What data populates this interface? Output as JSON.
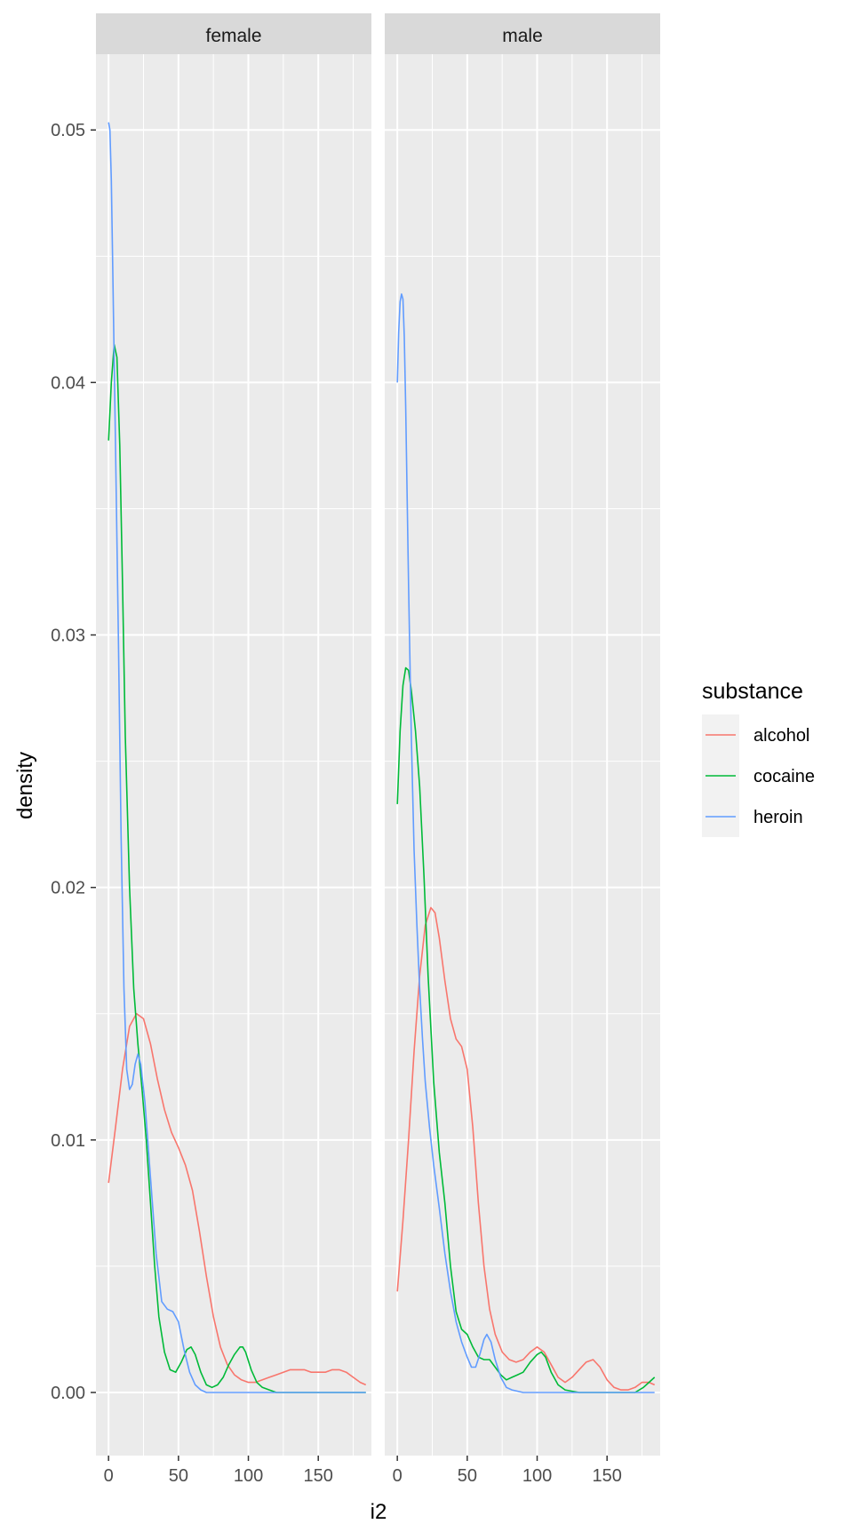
{
  "chart_data": {
    "type": "line",
    "title": "",
    "xlabel": "i2",
    "ylabel": "density",
    "xlim": [
      -9,
      188
    ],
    "ylim": [
      -0.0025,
      0.053
    ],
    "x_ticks": [
      0,
      50,
      100,
      150
    ],
    "x_tick_labels": [
      "0",
      "50",
      "100",
      "150"
    ],
    "y_ticks": [
      0,
      0.01,
      0.02,
      0.03,
      0.04,
      0.05
    ],
    "y_tick_labels": [
      "0.00",
      "0.01",
      "0.02",
      "0.03",
      "0.04",
      "0.05"
    ],
    "grid": true,
    "legend": {
      "title": "substance",
      "position": "right",
      "entries": [
        "alcohol",
        "cocaine",
        "heroin"
      ]
    },
    "colors": {
      "alcohol": "#F8766D",
      "cocaine": "#00BA38",
      "heroin": "#619CFF",
      "panel_bg": "#EBEBEB",
      "strip_bg": "#D9D9D9",
      "grid": "#FFFFFF"
    },
    "panels": [
      {
        "label": "female",
        "series": [
          {
            "name": "alcohol",
            "x": [
              0,
              5,
              10,
              15,
              20,
              25,
              30,
              35,
              40,
              45,
              50,
              55,
              60,
              65,
              70,
              75,
              80,
              85,
              90,
              95,
              100,
              105,
              110,
              115,
              120,
              125,
              130,
              135,
              140,
              145,
              150,
              155,
              160,
              165,
              170,
              175,
              180,
              184
            ],
            "y": [
              0.0083,
              0.0105,
              0.0128,
              0.0145,
              0.015,
              0.0148,
              0.0138,
              0.0124,
              0.0112,
              0.0103,
              0.0097,
              0.009,
              0.008,
              0.0064,
              0.0046,
              0.003,
              0.0018,
              0.0011,
              0.0007,
              0.0005,
              0.0004,
              0.0004,
              0.0005,
              0.0006,
              0.0007,
              0.0008,
              0.0009,
              0.0009,
              0.0009,
              0.0008,
              0.0008,
              0.0008,
              0.0009,
              0.0009,
              0.0008,
              0.0006,
              0.0004,
              0.0003
            ]
          },
          {
            "name": "cocaine",
            "x": [
              0,
              2,
              4,
              6,
              8,
              10,
              12,
              15,
              18,
              21,
              24,
              27,
              30,
              33,
              36,
              40,
              44,
              48,
              52,
              56,
              59,
              62,
              66,
              70,
              74,
              78,
              82,
              86,
              90,
              94,
              96,
              98,
              102,
              106,
              110,
              115,
              120,
              130,
              150,
              170,
              184
            ],
            "y": [
              0.0377,
              0.04,
              0.0415,
              0.041,
              0.0375,
              0.032,
              0.026,
              0.02,
              0.016,
              0.0138,
              0.012,
              0.01,
              0.0075,
              0.005,
              0.003,
              0.0016,
              0.0009,
              0.0008,
              0.0012,
              0.0017,
              0.0018,
              0.0015,
              0.0008,
              0.0003,
              0.0002,
              0.0003,
              0.0006,
              0.0011,
              0.0015,
              0.0018,
              0.0018,
              0.0016,
              0.0009,
              0.0004,
              0.0002,
              0.0001,
              0.0,
              0.0,
              0.0,
              0.0,
              0.0
            ]
          },
          {
            "name": "heroin",
            "x": [
              0,
              1,
              2,
              3,
              5,
              7,
              9,
              11,
              13,
              15,
              17,
              19,
              21,
              23,
              26,
              30,
              34,
              38,
              42,
              46,
              50,
              54,
              58,
              62,
              66,
              70,
              75,
              80,
              90,
              110,
              130,
              150,
              170,
              184
            ],
            "y": [
              0.0503,
              0.05,
              0.048,
              0.0445,
              0.0375,
              0.03,
              0.022,
              0.016,
              0.0128,
              0.012,
              0.0122,
              0.013,
              0.0134,
              0.013,
              0.0115,
              0.0085,
              0.0055,
              0.0036,
              0.0033,
              0.0032,
              0.0028,
              0.0017,
              0.0008,
              0.0003,
              0.0001,
              0.0,
              0.0,
              0.0,
              0.0,
              0.0,
              0.0,
              0.0,
              0.0,
              0.0
            ]
          }
        ]
      },
      {
        "label": "male",
        "series": [
          {
            "name": "alcohol",
            "x": [
              0,
              4,
              8,
              12,
              16,
              20,
              24,
              27,
              30,
              34,
              38,
              42,
              46,
              50,
              54,
              58,
              62,
              66,
              70,
              75,
              80,
              85,
              90,
              95,
              100,
              105,
              110,
              115,
              120,
              125,
              130,
              135,
              140,
              145,
              150,
              155,
              160,
              165,
              170,
              175,
              180,
              184
            ],
            "y": [
              0.004,
              0.0068,
              0.01,
              0.0135,
              0.0165,
              0.0185,
              0.0192,
              0.019,
              0.018,
              0.0163,
              0.0148,
              0.014,
              0.0137,
              0.0128,
              0.0105,
              0.0075,
              0.005,
              0.0033,
              0.0023,
              0.0016,
              0.0013,
              0.0012,
              0.0013,
              0.0016,
              0.0018,
              0.0016,
              0.0011,
              0.0006,
              0.0004,
              0.0006,
              0.0009,
              0.0012,
              0.0013,
              0.001,
              0.0005,
              0.0002,
              0.0001,
              0.0001,
              0.0002,
              0.0004,
              0.0004,
              0.0003
            ]
          },
          {
            "name": "cocaine",
            "x": [
              0,
              2,
              4,
              6,
              8,
              10,
              13,
              16,
              19,
              22,
              26,
              30,
              34,
              38,
              42,
              46,
              50,
              54,
              58,
              62,
              66,
              70,
              74,
              78,
              82,
              86,
              90,
              95,
              100,
              103,
              106,
              110,
              115,
              120,
              130,
              140,
              150,
              160,
              170,
              176,
              180,
              184
            ],
            "y": [
              0.0233,
              0.0262,
              0.028,
              0.0287,
              0.0286,
              0.0278,
              0.0262,
              0.024,
              0.0205,
              0.0165,
              0.0123,
              0.0095,
              0.0075,
              0.005,
              0.0032,
              0.0025,
              0.0023,
              0.0018,
              0.0014,
              0.0013,
              0.0013,
              0.001,
              0.0007,
              0.0005,
              0.0006,
              0.0007,
              0.0008,
              0.0012,
              0.0015,
              0.0016,
              0.0014,
              0.0008,
              0.0003,
              0.0001,
              0.0,
              0.0,
              0.0,
              0.0,
              0.0,
              0.0002,
              0.0004,
              0.0006
            ]
          },
          {
            "name": "heroin",
            "x": [
              0,
              1,
              2,
              3,
              4,
              5,
              6,
              8,
              10,
              12,
              14,
              16,
              18,
              20,
              23,
              26,
              30,
              34,
              38,
              42,
              46,
              50,
              53,
              56,
              59,
              62,
              64,
              67,
              70,
              74,
              78,
              82,
              90,
              110,
              130,
              150,
              170,
              184
            ],
            "y": [
              0.04,
              0.042,
              0.0432,
              0.0435,
              0.0433,
              0.0418,
              0.039,
              0.032,
              0.026,
              0.0215,
              0.0185,
              0.016,
              0.014,
              0.0123,
              0.0105,
              0.009,
              0.0073,
              0.0055,
              0.004,
              0.0028,
              0.002,
              0.0014,
              0.001,
              0.001,
              0.0015,
              0.0021,
              0.0023,
              0.002,
              0.0013,
              0.0006,
              0.0002,
              0.0001,
              0.0,
              0.0,
              0.0,
              0.0,
              0.0,
              0.0
            ]
          }
        ]
      }
    ]
  }
}
